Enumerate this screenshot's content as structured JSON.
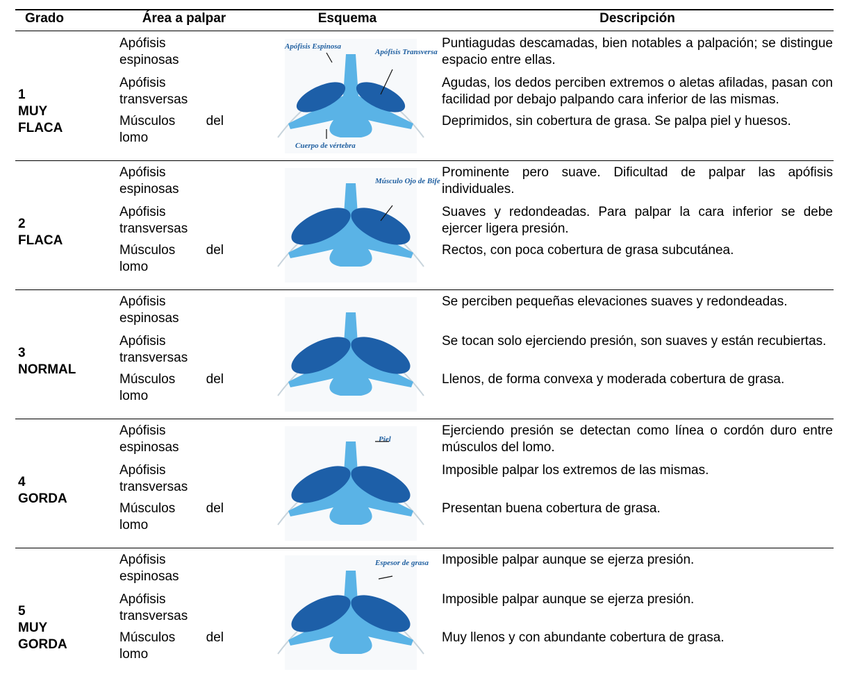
{
  "table": {
    "header": [
      "Grado",
      "Área a palpar",
      "Esquema",
      "Descripción"
    ],
    "rows": [
      {
        "grade": "1",
        "label": "MUY FLACA",
        "areas": [
          "Apófisis espinosas",
          "Apófisis transversas",
          "Músculos del lomo"
        ],
        "schema_labels": [
          "Apófisis Espinosa",
          "Apófisis Transversa",
          "Cuerpo de vértebra"
        ],
        "descriptions": [
          "Puntiagudas descamadas, bien notables a palpación; se distingue espacio entre ellas.",
          "Agudas, los dedos perciben extremos o aletas afiladas, pasan con facilidad por debajo palpando cara inferior de las mismas.",
          "Deprimidos, sin cobertura de grasa.  Se palpa piel y huesos."
        ]
      },
      {
        "grade": "2",
        "label": "FLACA",
        "areas": [
          "Apófisis espinosas",
          "Apófisis transversas",
          "Músculos del lomo"
        ],
        "schema_labels": [
          "Músculo Ojo de Bife"
        ],
        "descriptions": [
          "Prominente pero suave.  Dificultad de palpar las apófisis individuales.",
          "Suaves y redondeadas.  Para palpar la cara inferior se debe ejercer ligera presión.",
          "Rectos, con poca cobertura de grasa subcutánea."
        ]
      },
      {
        "grade": "3",
        "label": "NORMAL",
        "areas": [
          "Apófisis espinosas",
          "Apófisis transversas",
          "Músculos del lomo"
        ],
        "schema_labels": [],
        "descriptions": [
          "Se perciben pequeñas elevaciones suaves y redondeadas.",
          "Se tocan solo ejerciendo presión, son suaves y están recubiertas.",
          "Llenos, de forma convexa y moderada cobertura de grasa."
        ]
      },
      {
        "grade": "4",
        "label": "GORDA",
        "areas": [
          "Apófisis espinosas",
          "Apófisis transversas",
          "Músculos del lomo"
        ],
        "schema_labels": [
          "Piel"
        ],
        "descriptions": [
          "Ejerciendo presión se detectan como línea o cordón duro entre músculos del lomo.",
          "Imposible palpar los extremos de las mismas.",
          "Presentan buena cobertura de grasa."
        ]
      },
      {
        "grade": "5",
        "label": "MUY GORDA",
        "areas": [
          "Apófisis espinosas",
          "Apófisis transversas",
          "Músculos del lomo"
        ],
        "schema_labels": [
          "Espesor de grasa"
        ],
        "descriptions": [
          "Imposible palpar aunque se ejerza presión.",
          "Imposible palpar aunque se ejerza presión.",
          "Muy llenos y con abundante cobertura de grasa."
        ]
      }
    ]
  }
}
